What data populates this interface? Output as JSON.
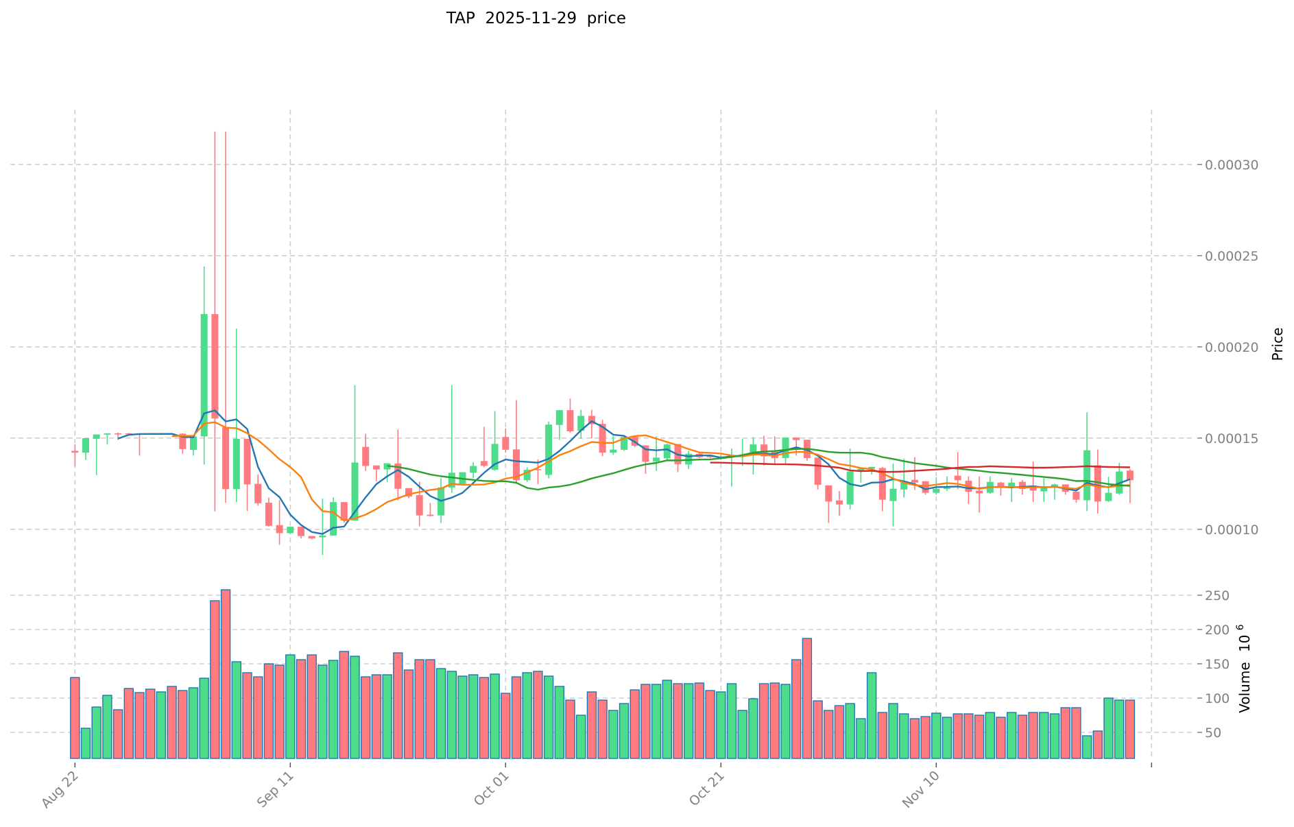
{
  "chart_data": {
    "type": "candlestick",
    "title": "TAP  2025-11-29  price",
    "start_date": "2025-08-22",
    "price_panel": {
      "ylabel": "Price",
      "ylim": [
        7.25e-05,
        0.00033
      ],
      "value_scale": 0.0001,
      "yticks": [
        0.0001,
        0.00015,
        0.0002,
        0.00025,
        0.0003
      ],
      "ytick_labels": [
        "0.00010",
        "0.00015",
        "0.00020",
        "0.00025",
        "0.00030"
      ]
    },
    "volume_panel": {
      "ylabel": "Volume",
      "ylabel_exponent": "6",
      "ylabel_base": "10",
      "ylim": [
        12,
        270
      ],
      "yticks": [
        50,
        100,
        150,
        200,
        250
      ],
      "ytick_labels": [
        "50",
        "100",
        "150",
        "200",
        "250"
      ]
    },
    "xticks": [
      {
        "index": 0,
        "label": "Aug 22"
      },
      {
        "index": 20,
        "label": "Sep 11"
      },
      {
        "index": 40,
        "label": "Oct 01"
      },
      {
        "index": 60,
        "label": "Oct 21"
      },
      {
        "index": 80,
        "label": "Nov 10"
      },
      {
        "index": 100,
        "label": ""
      }
    ],
    "grid": true,
    "colors": {
      "up": "#4cdc8a",
      "down": "#ff7b80",
      "volume_edge": "#1f77b4",
      "grid": "#cfcfcf"
    },
    "moving_averages": [
      {
        "period": 5,
        "color": "#1f77b4"
      },
      {
        "period": 10,
        "color": "#ff7f0e"
      },
      {
        "period": 30,
        "color": "#2ca02c"
      },
      {
        "period": 60,
        "color": "#d62728"
      }
    ],
    "ohlc_columns": [
      "open",
      "high",
      "low",
      "close"
    ],
    "ohlc": [
      [
        1.43,
        1.465,
        1.347,
        1.42
      ],
      [
        1.42,
        1.5,
        1.38,
        1.499
      ],
      [
        1.496,
        1.52,
        1.297,
        1.52
      ],
      [
        1.519,
        1.526,
        1.465,
        1.526
      ],
      [
        1.526,
        1.53,
        1.49,
        1.52
      ],
      [
        1.526,
        1.528,
        1.52,
        1.524
      ],
      [
        1.524,
        1.526,
        1.404,
        1.522
      ],
      [
        1.524,
        1.526,
        1.52,
        1.522
      ],
      [
        1.522,
        1.527,
        1.52,
        1.525
      ],
      [
        1.525,
        1.527,
        1.52,
        1.523
      ],
      [
        1.524,
        1.526,
        1.414,
        1.44
      ],
      [
        1.435,
        1.509,
        1.404,
        1.509
      ],
      [
        1.509,
        2.44,
        1.355,
        2.18
      ],
      [
        2.18,
        3.18,
        1.098,
        1.607
      ],
      [
        1.56,
        3.18,
        1.145,
        1.22
      ],
      [
        1.22,
        2.1,
        1.149,
        1.496
      ],
      [
        1.496,
        1.496,
        1.1,
        1.246
      ],
      [
        1.249,
        1.3,
        1.13,
        1.143
      ],
      [
        1.146,
        1.174,
        1.015,
        1.019
      ],
      [
        1.023,
        1.16,
        0.915,
        0.979
      ],
      [
        0.979,
        1.014,
        0.975,
        1.014
      ],
      [
        1.014,
        1.014,
        0.95,
        0.963
      ],
      [
        0.963,
        0.963,
        0.945,
        0.95
      ],
      [
        0.956,
        1.168,
        0.859,
        0.966
      ],
      [
        0.966,
        1.174,
        0.966,
        1.149
      ],
      [
        1.149,
        1.149,
        1.035,
        1.048
      ],
      [
        1.048,
        1.79,
        1.048,
        1.366
      ],
      [
        1.452,
        1.524,
        1.32,
        1.347
      ],
      [
        1.35,
        1.35,
        1.263,
        1.328
      ],
      [
        1.328,
        1.362,
        1.26,
        1.362
      ],
      [
        1.361,
        1.547,
        1.159,
        1.222
      ],
      [
        1.226,
        1.226,
        1.17,
        1.18
      ],
      [
        1.187,
        1.26,
        1.016,
        1.076
      ],
      [
        1.08,
        1.145,
        1.07,
        1.073
      ],
      [
        1.076,
        1.28,
        1.035,
        1.229
      ],
      [
        1.229,
        1.79,
        1.2,
        1.31
      ],
      [
        1.249,
        1.313,
        1.24,
        1.313
      ],
      [
        1.31,
        1.367,
        1.28,
        1.347
      ],
      [
        1.374,
        1.562,
        1.34,
        1.348
      ],
      [
        1.326,
        1.648,
        1.32,
        1.468
      ],
      [
        1.506,
        1.553,
        1.42,
        1.436
      ],
      [
        1.438,
        1.708,
        1.25,
        1.269
      ],
      [
        1.269,
        1.34,
        1.26,
        1.326
      ],
      [
        1.33,
        1.383,
        1.247,
        1.326
      ],
      [
        1.298,
        1.59,
        1.279,
        1.574
      ],
      [
        1.572,
        1.653,
        1.49,
        1.653
      ],
      [
        1.653,
        1.717,
        1.53,
        1.537
      ],
      [
        1.54,
        1.655,
        1.496,
        1.622
      ],
      [
        1.622,
        1.655,
        1.499,
        1.576
      ],
      [
        1.578,
        1.6,
        1.4,
        1.42
      ],
      [
        1.42,
        1.511,
        1.408,
        1.437
      ],
      [
        1.436,
        1.51,
        1.43,
        1.506
      ],
      [
        1.506,
        1.51,
        1.45,
        1.458
      ],
      [
        1.46,
        1.46,
        1.304,
        1.37
      ],
      [
        1.372,
        1.509,
        1.32,
        1.393
      ],
      [
        1.389,
        1.47,
        1.38,
        1.465
      ],
      [
        1.467,
        1.467,
        1.313,
        1.357
      ],
      [
        1.355,
        1.43,
        1.33,
        1.414
      ],
      [
        1.414,
        1.42,
        1.39,
        1.395
      ],
      [
        1.408,
        1.41,
        1.39,
        1.395
      ],
      [
        1.398,
        1.41,
        1.39,
        1.4
      ],
      [
        1.395,
        1.443,
        1.234,
        1.4
      ],
      [
        1.4,
        1.496,
        1.347,
        1.407
      ],
      [
        1.405,
        1.505,
        1.3,
        1.465
      ],
      [
        1.465,
        1.513,
        1.35,
        1.4
      ],
      [
        1.425,
        1.51,
        1.36,
        1.39
      ],
      [
        1.39,
        1.503,
        1.36,
        1.503
      ],
      [
        1.503,
        1.503,
        1.404,
        1.489
      ],
      [
        1.491,
        1.491,
        1.376,
        1.39
      ],
      [
        1.393,
        1.393,
        1.218,
        1.244
      ],
      [
        1.241,
        1.241,
        1.035,
        1.152
      ],
      [
        1.158,
        1.21,
        1.073,
        1.136
      ],
      [
        1.136,
        1.443,
        1.109,
        1.317
      ],
      [
        1.317,
        1.332,
        1.256,
        1.332
      ],
      [
        1.332,
        1.342,
        1.3,
        1.342
      ],
      [
        1.336,
        1.342,
        1.098,
        1.162
      ],
      [
        1.155,
        1.36,
        1.016,
        1.222
      ],
      [
        1.218,
        1.386,
        1.174,
        1.256
      ],
      [
        1.271,
        1.395,
        1.215,
        1.256
      ],
      [
        1.263,
        1.263,
        1.19,
        1.2
      ],
      [
        1.2,
        1.284,
        1.19,
        1.222
      ],
      [
        1.222,
        1.29,
        1.21,
        1.227
      ],
      [
        1.294,
        1.423,
        1.22,
        1.269
      ],
      [
        1.266,
        1.29,
        1.139,
        1.206
      ],
      [
        1.212,
        1.29,
        1.092,
        1.197
      ],
      [
        1.2,
        1.29,
        1.195,
        1.26
      ],
      [
        1.256,
        1.26,
        1.184,
        1.229
      ],
      [
        1.229,
        1.28,
        1.149,
        1.256
      ],
      [
        1.26,
        1.27,
        1.19,
        1.221
      ],
      [
        1.24,
        1.372,
        1.149,
        1.212
      ],
      [
        1.208,
        1.28,
        1.149,
        1.231
      ],
      [
        1.231,
        1.25,
        1.162,
        1.246
      ],
      [
        1.246,
        1.246,
        1.19,
        1.206
      ],
      [
        1.206,
        1.206,
        1.145,
        1.162
      ],
      [
        1.159,
        1.641,
        1.1,
        1.433
      ],
      [
        1.351,
        1.437,
        1.086,
        1.152
      ],
      [
        1.155,
        1.288,
        1.15,
        1.2
      ],
      [
        1.196,
        1.364,
        1.19,
        1.317
      ],
      [
        1.322,
        1.33,
        1.143,
        1.269
      ]
    ],
    "volume": [
      130,
      56,
      87,
      104,
      83,
      114,
      108,
      113,
      109,
      117,
      111,
      115,
      129,
      242,
      258,
      153,
      137,
      131,
      150,
      148,
      163,
      156,
      163,
      148,
      155,
      168,
      161,
      131,
      134,
      134,
      166,
      141,
      156,
      156,
      143,
      139,
      132,
      134,
      130,
      135,
      107,
      131,
      137,
      139,
      132,
      117,
      97,
      75,
      109,
      97,
      82,
      92,
      112,
      120,
      120,
      126,
      121,
      121,
      122,
      111,
      109,
      121,
      82,
      99,
      121,
      122,
      120,
      156,
      187,
      96,
      82,
      89,
      92,
      70,
      137,
      79,
      92,
      77,
      70,
      73,
      78,
      72,
      77,
      77,
      75,
      79,
      72,
      79,
      75,
      79,
      79,
      77,
      86,
      86,
      45,
      52,
      100,
      97,
      97
    ]
  }
}
